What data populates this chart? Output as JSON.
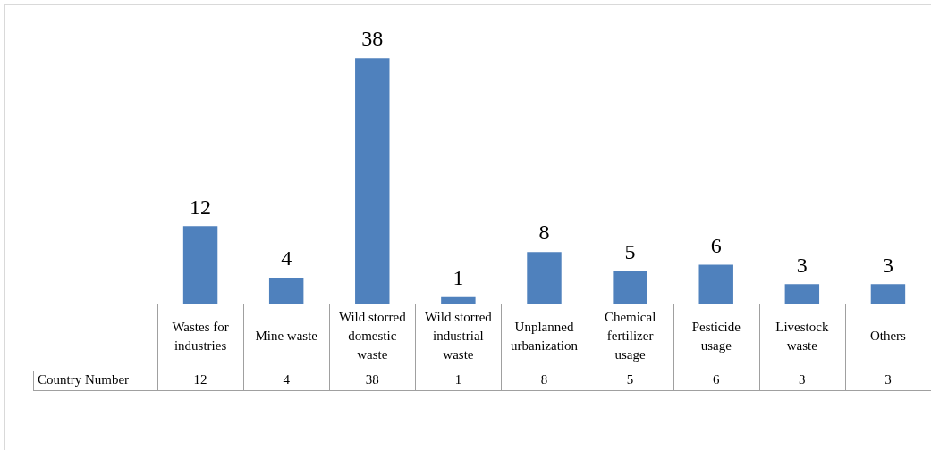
{
  "chart_data": {
    "type": "bar",
    "categories": [
      "Wastes for industries",
      "Mine waste",
      "Wild storred domestic waste",
      "Wild storred industrial waste",
      "Unplanned urbanization",
      "Chemical fertilizer usage",
      "Pesticide usage",
      "Livestock waste",
      "Others"
    ],
    "series": [
      {
        "name": "Country Number",
        "color": "#4f81bd",
        "values": [
          12,
          4,
          38,
          1,
          8,
          5,
          6,
          3,
          3
        ]
      }
    ],
    "annotations": [
      "12",
      "4",
      "38",
      "1",
      "8",
      "5",
      "6",
      "3",
      "3"
    ],
    "data_labels": true
  }
}
